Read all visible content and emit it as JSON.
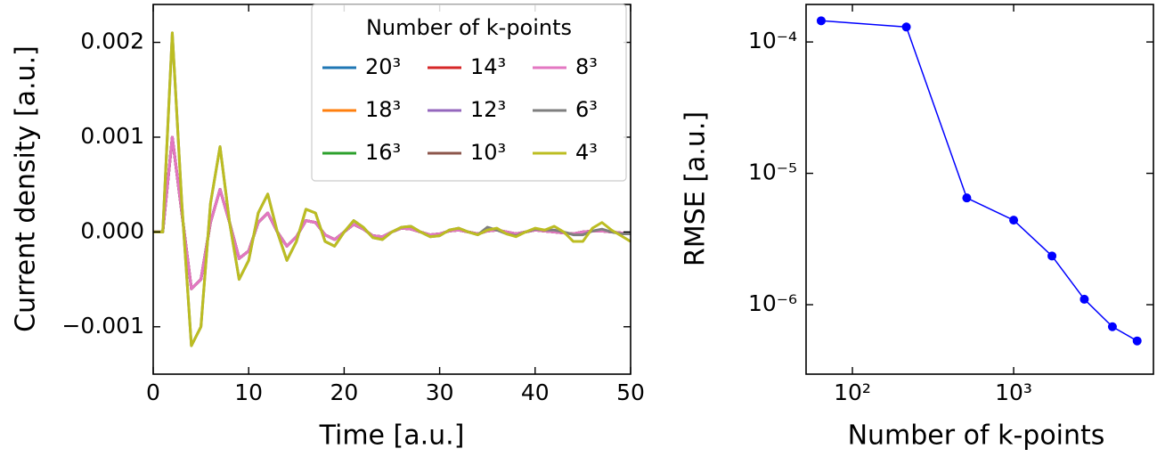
{
  "chart_data": [
    {
      "type": "line",
      "xlabel": "Time [a.u.]",
      "ylabel": "Current density [a.u.]",
      "xlim": [
        0,
        50
      ],
      "ylim": [
        -0.0015,
        0.0024
      ],
      "xticks": [
        0,
        10,
        20,
        30,
        40,
        50
      ],
      "yticks": [
        {
          "value": -0.001,
          "label": "−0.001"
        },
        {
          "value": 0,
          "label": "0.000"
        },
        {
          "value": 0.001,
          "label": "0.001"
        },
        {
          "value": 0.002,
          "label": "0.002"
        }
      ],
      "legend_title": "Number of k-points",
      "legend_loc": "upper right",
      "x": [
        0,
        1,
        2,
        3,
        4,
        5,
        6,
        7,
        8,
        9,
        10,
        11,
        12,
        13,
        14,
        15,
        16,
        17,
        18,
        19,
        20,
        21,
        22,
        23,
        24,
        25,
        26,
        27,
        28,
        29,
        30,
        31,
        32,
        33,
        34,
        35,
        36,
        37,
        38,
        39,
        40,
        41,
        42,
        43,
        44,
        45,
        46,
        47,
        48,
        49,
        50
      ],
      "series": [
        {
          "name": "20³",
          "color": "#1f77b4",
          "values": [
            0,
            0,
            0.001,
            0.0002,
            -0.0006,
            -0.0005,
            0.0001,
            0.00045,
            0.0001,
            -0.00028,
            -0.0002,
            0.0001,
            0.0002,
            0,
            -0.00015,
            -5e-05,
            0.00012,
            0.0001,
            -3e-05,
            -8e-05,
            0,
            8e-05,
            3e-05,
            -4e-05,
            -5e-05,
            0,
            4e-05,
            3e-05,
            0,
            -3e-05,
            -2e-05,
            1e-05,
            2e-05,
            0,
            -2e-05,
            1e-05,
            2e-05,
            0,
            -2e-05,
            0,
            2e-05,
            1e-05,
            0,
            -1e-05,
            -2e-05,
            0,
            1e-05,
            1e-05,
            0,
            -1e-05,
            -1e-05
          ]
        },
        {
          "name": "18³",
          "color": "#ff7f0e",
          "values": [
            0,
            0,
            0.001,
            0.0002,
            -0.0006,
            -0.0005,
            0.0001,
            0.00045,
            0.0001,
            -0.00028,
            -0.0002,
            0.0001,
            0.0002,
            0,
            -0.00015,
            -5e-05,
            0.00012,
            0.0001,
            -3e-05,
            -8e-05,
            0,
            8e-05,
            3e-05,
            -4e-05,
            -5e-05,
            0,
            4e-05,
            3e-05,
            0,
            -3e-05,
            -2e-05,
            1e-05,
            2e-05,
            0,
            -2e-05,
            1e-05,
            2e-05,
            0,
            -2e-05,
            0,
            2e-05,
            1e-05,
            0,
            -1e-05,
            -2e-05,
            0,
            1e-05,
            1e-05,
            0,
            -1e-05,
            -1e-05
          ]
        },
        {
          "name": "16³",
          "color": "#2ca02c",
          "values": [
            0,
            0,
            0.001,
            0.0002,
            -0.0006,
            -0.0005,
            0.0001,
            0.00045,
            0.0001,
            -0.00028,
            -0.0002,
            0.0001,
            0.0002,
            0,
            -0.00015,
            -5e-05,
            0.00012,
            0.0001,
            -3e-05,
            -8e-05,
            0,
            8e-05,
            3e-05,
            -4e-05,
            -5e-05,
            0,
            4e-05,
            3e-05,
            0,
            -3e-05,
            -2e-05,
            1e-05,
            2e-05,
            0,
            -2e-05,
            1e-05,
            2e-05,
            0,
            -2e-05,
            0,
            2e-05,
            1e-05,
            0,
            -1e-05,
            -2e-05,
            0,
            1e-05,
            1e-05,
            0,
            -1e-05,
            -1e-05
          ]
        },
        {
          "name": "14³",
          "color": "#d62728",
          "values": [
            0,
            0,
            0.001,
            0.0002,
            -0.0006,
            -0.0005,
            0.0001,
            0.00045,
            0.0001,
            -0.00028,
            -0.0002,
            0.0001,
            0.0002,
            0,
            -0.00015,
            -5e-05,
            0.00012,
            0.0001,
            -3e-05,
            -8e-05,
            0,
            8e-05,
            3e-05,
            -4e-05,
            -5e-05,
            0,
            4e-05,
            3e-05,
            0,
            -3e-05,
            -2e-05,
            1e-05,
            2e-05,
            0,
            -2e-05,
            1e-05,
            2e-05,
            0,
            -2e-05,
            0,
            2e-05,
            1e-05,
            0,
            -1e-05,
            -2e-05,
            0,
            1e-05,
            1e-05,
            0,
            -1e-05,
            -1e-05
          ]
        },
        {
          "name": "12³",
          "color": "#9467bd",
          "values": [
            0,
            0,
            0.001,
            0.0002,
            -0.0006,
            -0.0005,
            0.0001,
            0.00045,
            0.0001,
            -0.00028,
            -0.0002,
            0.0001,
            0.0002,
            0,
            -0.00015,
            -5e-05,
            0.00012,
            0.0001,
            -3e-05,
            -8e-05,
            0,
            8e-05,
            3e-05,
            -4e-05,
            -5e-05,
            0,
            4e-05,
            3e-05,
            0,
            -3e-05,
            -2e-05,
            1e-05,
            2e-05,
            0,
            -2e-05,
            1e-05,
            2e-05,
            0,
            -2e-05,
            0,
            2e-05,
            1e-05,
            0,
            -1e-05,
            -2e-05,
            0,
            1e-05,
            1e-05,
            0,
            -1e-05,
            -1e-05
          ]
        },
        {
          "name": "10³",
          "color": "#8c564b",
          "values": [
            0,
            0,
            0.001,
            0.0002,
            -0.0006,
            -0.0005,
            0.0001,
            0.00045,
            0.0001,
            -0.00028,
            -0.0002,
            0.0001,
            0.0002,
            0,
            -0.00015,
            -5e-05,
            0.00012,
            0.0001,
            -3e-05,
            -8e-05,
            0,
            8e-05,
            3e-05,
            -4e-05,
            -5e-05,
            0,
            4e-05,
            3e-05,
            0,
            -3e-05,
            -2e-05,
            1e-05,
            2e-05,
            0,
            -2e-05,
            1e-05,
            2e-05,
            0,
            -2e-05,
            0,
            2e-05,
            1e-05,
            0,
            -1e-05,
            -2e-05,
            0,
            1e-05,
            1e-05,
            0,
            -1e-05,
            -1e-05
          ]
        },
        {
          "name": "8³",
          "color": "#e377c2",
          "values": [
            0,
            0,
            0.001,
            0.0002,
            -0.0006,
            -0.0005,
            0.0001,
            0.00045,
            0.0001,
            -0.00028,
            -0.0002,
            0.0001,
            0.0002,
            0,
            -0.00015,
            -5e-05,
            0.00012,
            0.0001,
            -3e-05,
            -8e-05,
            0,
            8e-05,
            3e-05,
            -4e-05,
            -5e-05,
            0,
            4e-05,
            3e-05,
            0,
            -3e-05,
            -2e-05,
            1e-05,
            2e-05,
            0,
            -2e-05,
            1e-05,
            2e-05,
            0,
            -2e-05,
            0,
            2e-05,
            1e-05,
            0,
            -1e-05,
            -2e-05,
            0,
            1e-05,
            1e-05,
            0,
            -1e-05,
            -1e-05
          ]
        },
        {
          "name": "6³",
          "color": "#7f7f7f",
          "values": [
            0,
            0,
            0.0021,
            0.0003,
            -0.0012,
            -0.001,
            0.0003,
            0.0009,
            0.0001,
            -0.0005,
            -0.0003,
            0.0002,
            0.0004,
            0,
            -0.0003,
            -0.0001,
            0.00024,
            0.0002,
            -0.0001,
            -0.00015,
            0,
            0.00012,
            5e-05,
            -6e-05,
            -8e-05,
            0,
            5e-05,
            6e-05,
            0,
            -5e-05,
            -4e-05,
            2e-05,
            4e-05,
            0,
            -3e-05,
            5e-05,
            2e-05,
            -2e-05,
            -4e-05,
            0,
            3e-05,
            2e-05,
            2e-05,
            0,
            -3e-05,
            -3e-05,
            1e-05,
            3e-05,
            0,
            -2e-05,
            -2e-05
          ]
        },
        {
          "name": "4³",
          "color": "#bcbd22",
          "values": [
            0,
            0,
            0.0021,
            0.0003,
            -0.0012,
            -0.001,
            0.0003,
            0.0009,
            0.0001,
            -0.0005,
            -0.0003,
            0.0002,
            0.0004,
            0,
            -0.0003,
            -0.0001,
            0.00024,
            0.0002,
            -0.0001,
            -0.00015,
            0,
            0.00012,
            5e-05,
            -6e-05,
            -8e-05,
            0,
            5e-05,
            6e-05,
            0,
            -5e-05,
            -4e-05,
            2e-05,
            4e-05,
            0,
            -3e-05,
            2e-05,
            4e-05,
            -2e-05,
            -5e-05,
            0,
            4e-05,
            2e-05,
            6e-05,
            0,
            -0.0001,
            -0.0001,
            4e-05,
            0.0001,
            2e-05,
            -4e-05,
            -0.0001
          ]
        }
      ]
    },
    {
      "type": "line",
      "xlabel": "Number of k-points",
      "ylabel": "RMSE [a.u.]",
      "xscale": "log",
      "yscale": "log",
      "xlim": [
        51.6,
        7360
      ],
      "ylim": [
        2.96e-07,
        0.000193
      ],
      "xticks": [
        {
          "value": 100,
          "label": "10²"
        },
        {
          "value": 1000,
          "label": "10³"
        }
      ],
      "yticks": [
        {
          "value": 1e-06,
          "label": "10⁻⁶"
        },
        {
          "value": 1e-05,
          "label": "10⁻⁵"
        },
        {
          "value": 0.0001,
          "label": "10⁻⁴"
        }
      ],
      "markers": true,
      "x": [
        64,
        216,
        512,
        1000,
        1728,
        2744,
        4096,
        5832
      ],
      "series": [
        {
          "color": "#0000ff",
          "values": [
            0.000145,
            0.00013,
            6.5e-06,
            4.4e-06,
            2.35e-06,
            1.1e-06,
            6.8e-07,
            5.3e-07
          ]
        }
      ]
    }
  ]
}
